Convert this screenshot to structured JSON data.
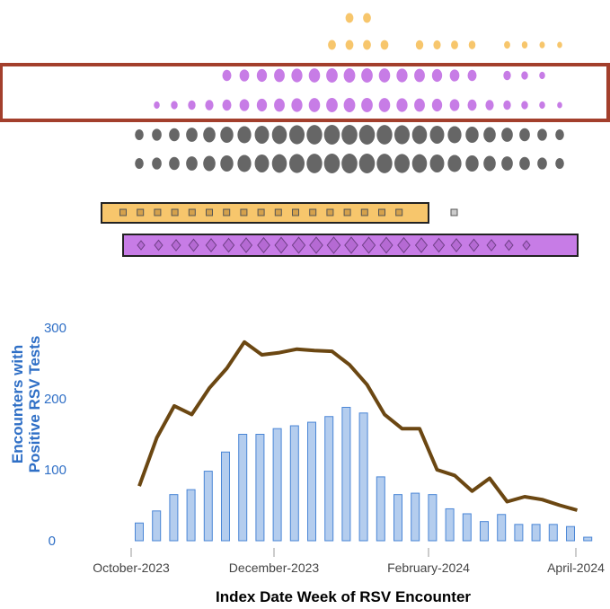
{
  "chart_data": {
    "type": "bar",
    "xlabel": "Index Date Week of RSV Encounter",
    "ylabel_line1": "Encounters with",
    "ylabel_line2": "Positive RSV Tests",
    "ylim": [
      0,
      300
    ],
    "yticks": [
      "0",
      "100",
      "200",
      "300"
    ],
    "xtick_labels": [
      "October-2023",
      "December-2023",
      "February-2024",
      "April-2024"
    ],
    "weeks": 25,
    "series": [
      {
        "kind": "bar",
        "color": "#b4cdee",
        "values": [
          25,
          42,
          65,
          72,
          98,
          125,
          150,
          150,
          158,
          162,
          167,
          175,
          188,
          180,
          90,
          65,
          67,
          65,
          45,
          38,
          27,
          37,
          23,
          23,
          23,
          20,
          5
        ]
      },
      {
        "kind": "line",
        "color": "#6b4712",
        "values": [
          77,
          145,
          190,
          178,
          215,
          243,
          280,
          262,
          265,
          270,
          268,
          267,
          248,
          220,
          178,
          158,
          158,
          100,
          92,
          70,
          88,
          55,
          62,
          58,
          50,
          43
        ]
      }
    ],
    "top_panels": {
      "orange_dot_rows": [
        [
          0,
          0,
          0,
          0,
          0,
          0,
          0,
          0,
          0,
          0,
          0,
          0,
          1,
          1,
          0,
          0,
          0,
          0,
          0,
          0,
          0,
          0,
          0,
          0,
          0
        ],
        [
          0,
          0,
          0,
          0,
          0,
          0,
          0,
          0,
          0,
          0,
          0,
          1,
          1,
          1,
          1,
          0,
          1,
          1,
          1,
          1,
          0,
          1,
          1,
          1,
          1
        ]
      ],
      "purple_dot_rows": [
        [
          0,
          0,
          0,
          0,
          0,
          1,
          1,
          1,
          1,
          1,
          1,
          1,
          1,
          1,
          1,
          1,
          1,
          1,
          1,
          1,
          0,
          1,
          1,
          1,
          0
        ],
        [
          0,
          1,
          1,
          1,
          1,
          1,
          1,
          1,
          1,
          1,
          1,
          1,
          1,
          1,
          1,
          1,
          1,
          1,
          1,
          1,
          1,
          1,
          1,
          1,
          1
        ]
      ],
      "gray_dot_rows": [
        [
          1,
          1,
          1,
          1,
          1,
          1,
          1,
          1,
          1,
          1,
          1,
          1,
          1,
          1,
          1,
          1,
          1,
          1,
          1,
          1,
          1,
          1,
          1,
          1,
          1
        ],
        [
          1,
          1,
          1,
          1,
          1,
          1,
          1,
          1,
          1,
          1,
          1,
          1,
          1,
          1,
          1,
          1,
          1,
          1,
          1,
          1,
          1,
          1,
          1,
          1,
          1
        ]
      ],
      "orange_bar_squares": 17,
      "purple_bar_diamonds": 23,
      "colors": {
        "orange": "#f7c66c",
        "purple": "#c77ce6",
        "gray": "#666666",
        "highlight": "#a33f2c"
      }
    }
  }
}
